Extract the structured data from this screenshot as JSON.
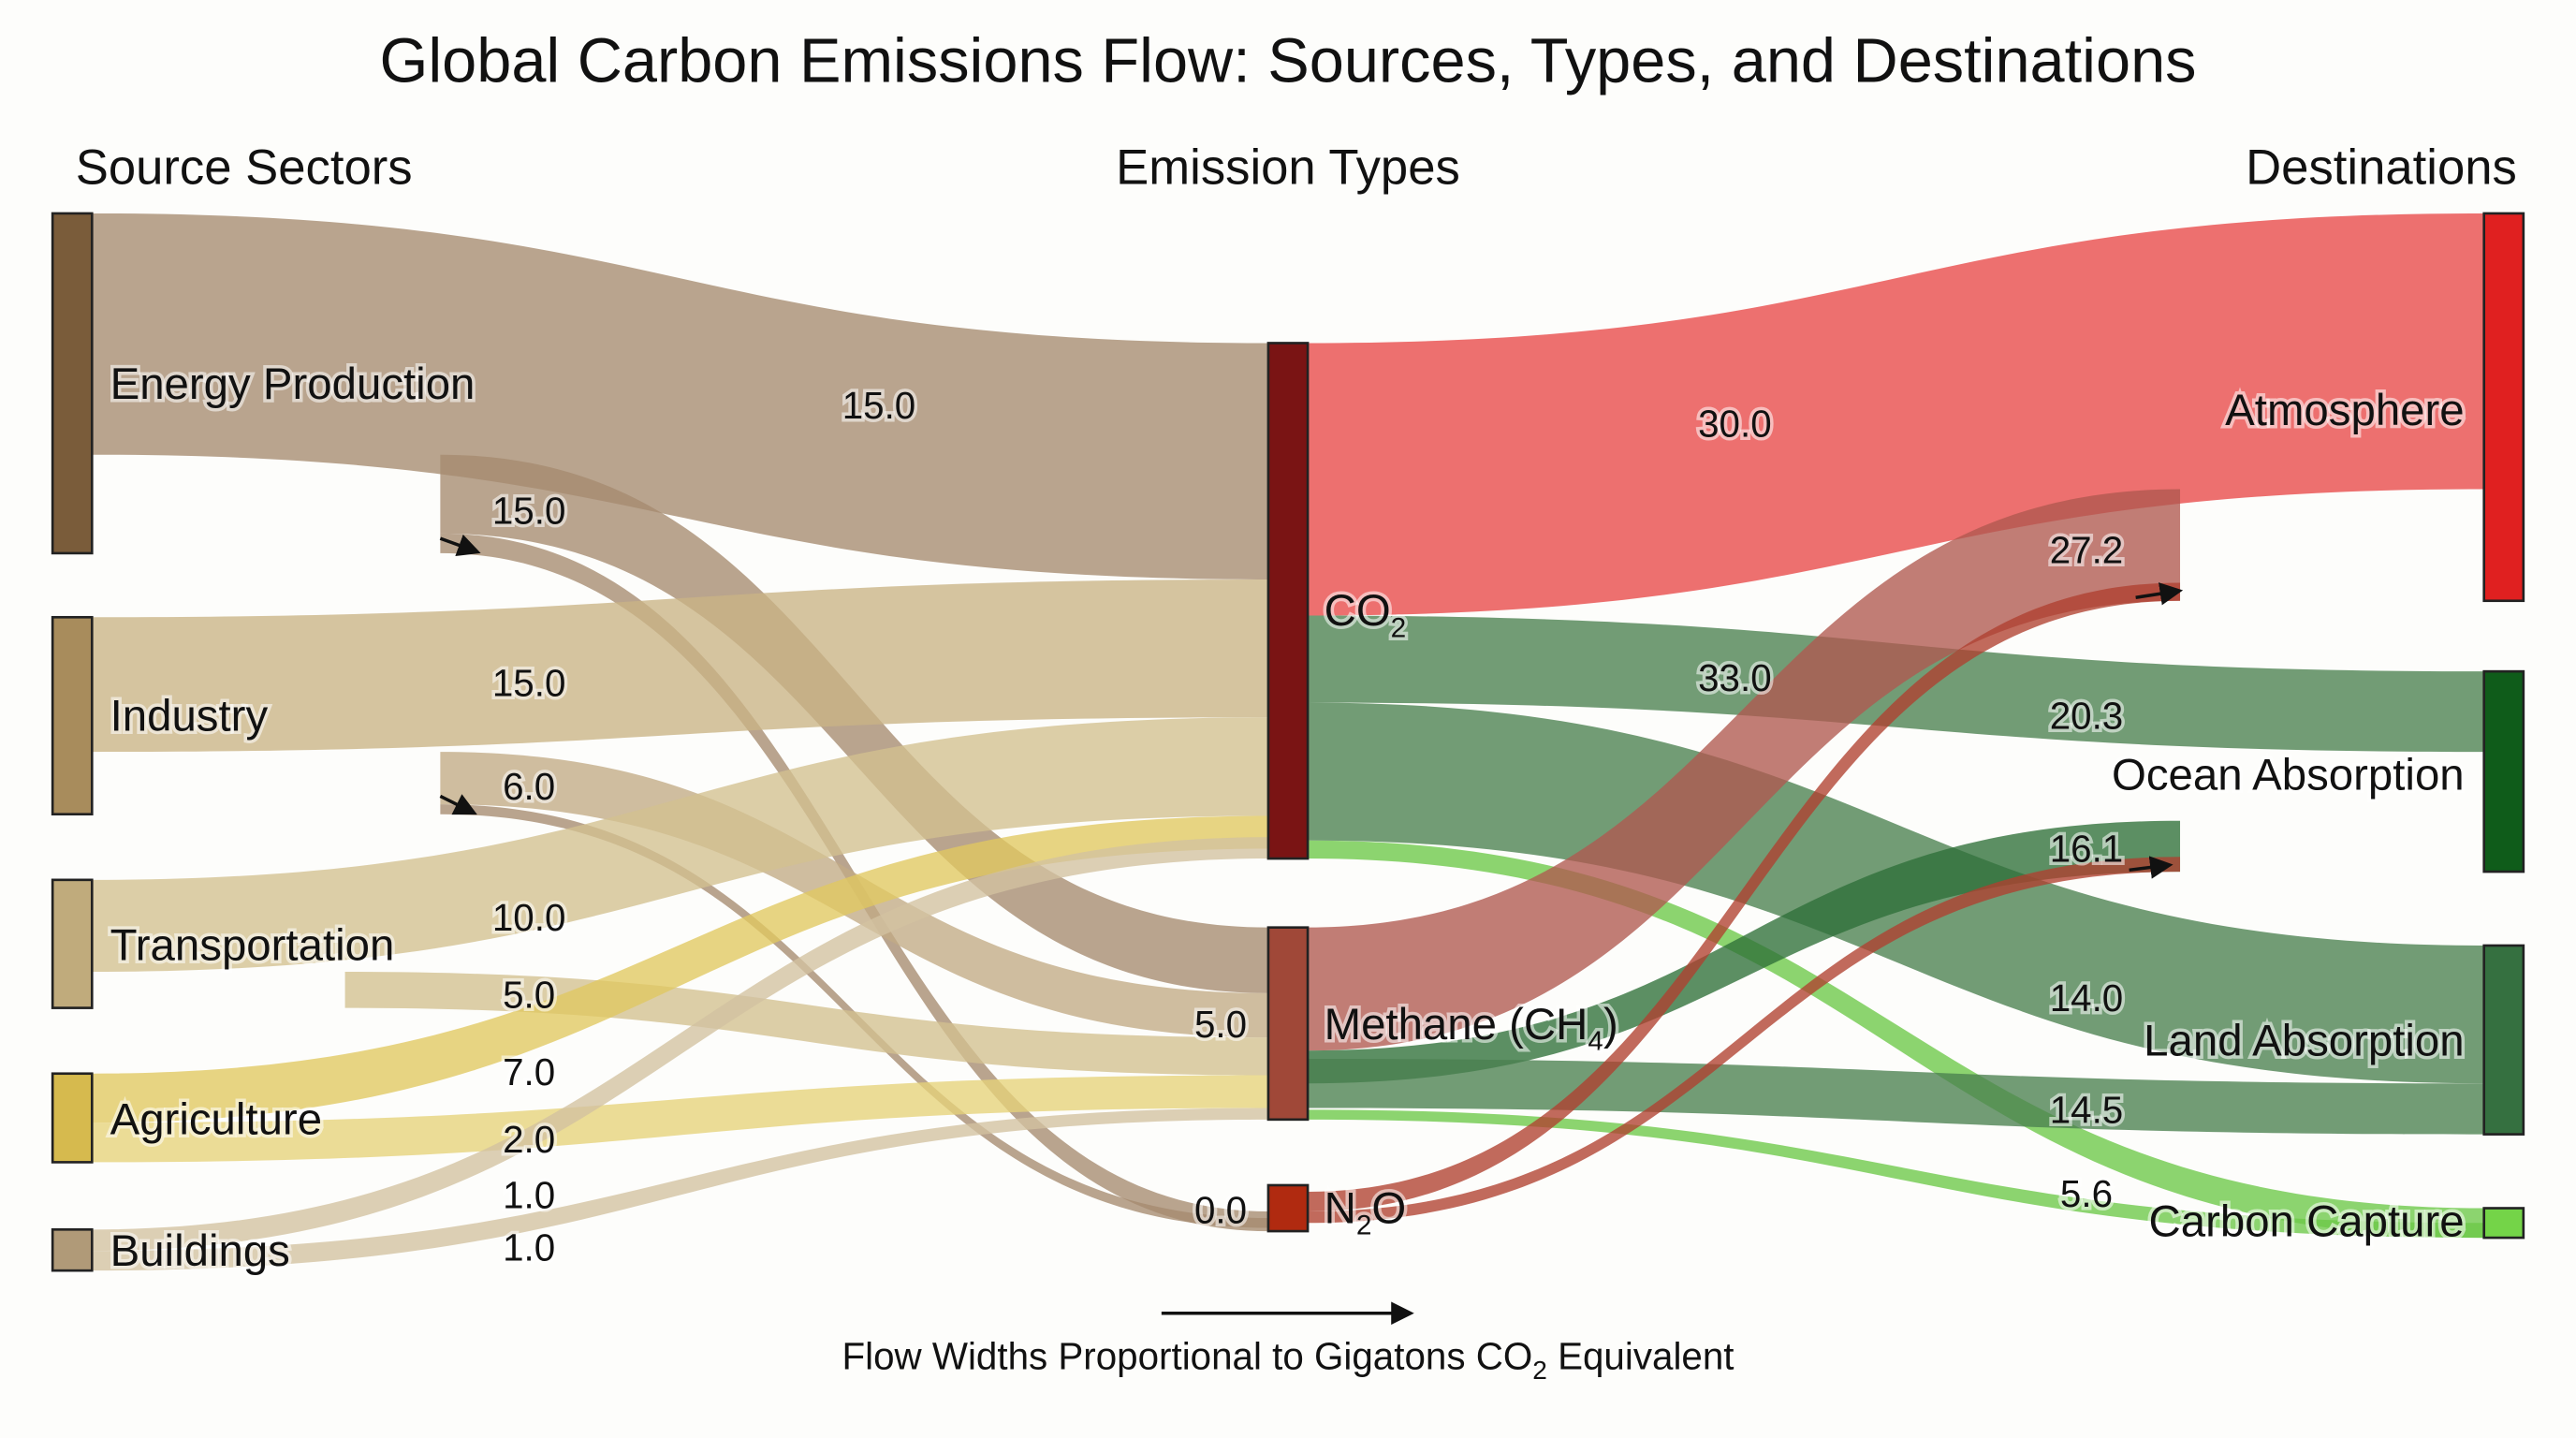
{
  "title": "Global Carbon Emissions Flow: Sources, Types, and Destinations",
  "columns": {
    "sources": "Source Sectors",
    "types": "Emission Types",
    "destinations": "Destinations"
  },
  "caption": {
    "text": "Flow Widths Proportional to Gigatons CO",
    "sub": "2",
    "suffix": " Equivalent"
  },
  "nodes": {
    "energy": {
      "label": "Energy Production",
      "color": "#7a5c3a"
    },
    "industry": {
      "label": "Industry",
      "color": "#a88c5c"
    },
    "transport": {
      "label": "Transportation",
      "color": "#c0ab7c"
    },
    "agriculture": {
      "label": "Agriculture",
      "color": "#d6ba4e"
    },
    "buildings": {
      "label": "Buildings",
      "color": "#b09a78"
    },
    "co2": {
      "label": "CO",
      "sub": "2",
      "suffix": "",
      "color": "#7a1414"
    },
    "methane": {
      "label": "Methane (CH",
      "sub": "4",
      "suffix": ")",
      "color": "#a04838"
    },
    "n2o": {
      "label": "N",
      "sub": "2",
      "suffix": "O",
      "color": "#b02a10"
    },
    "atmosphere": {
      "label": "Atmosphere",
      "color": "#e02020"
    },
    "ocean": {
      "label": "Ocean Absorption",
      "color": "#0f5c1a"
    },
    "land": {
      "label": "Land Absorption",
      "color": "#357040"
    },
    "capture": {
      "label": "Carbon Capture",
      "color": "#74d448"
    }
  },
  "links": [
    {
      "source": "energy",
      "target": "co2",
      "color": "#a58a70"
    },
    {
      "source": "energy",
      "target": "methane",
      "color": "#a58a70"
    },
    {
      "source": "energy",
      "target": "n2o",
      "color": "#a58a70"
    },
    {
      "source": "industry",
      "target": "co2",
      "color": "#c9b385"
    },
    {
      "source": "industry",
      "target": "methane",
      "color": "#c2ab85"
    },
    {
      "source": "industry",
      "target": "n2o",
      "color": "#a58a70"
    },
    {
      "source": "transport",
      "target": "co2",
      "color": "#d2c08f"
    },
    {
      "source": "transport",
      "target": "methane",
      "color": "#d2c08f"
    },
    {
      "source": "agriculture",
      "target": "co2",
      "color": "#e0c860"
    },
    {
      "source": "agriculture",
      "target": "methane",
      "color": "#e6d27a"
    },
    {
      "source": "buildings",
      "target": "co2",
      "color": "#d2c2a0"
    },
    {
      "source": "buildings",
      "target": "methane",
      "color": "#d2c2a0"
    },
    {
      "source": "co2",
      "target": "atmosphere",
      "color": "#e84848"
    },
    {
      "source": "co2",
      "target": "ocean",
      "color": "#4a8050"
    },
    {
      "source": "co2",
      "target": "land",
      "color": "#4a8050"
    },
    {
      "source": "co2",
      "target": "capture",
      "color": "#6cc848"
    },
    {
      "source": "methane",
      "target": "atmosphere",
      "color": "#b05850"
    },
    {
      "source": "methane",
      "target": "ocean",
      "color": "#2e7038"
    },
    {
      "source": "methane",
      "target": "land",
      "color": "#4a8050"
    },
    {
      "source": "methane",
      "target": "capture",
      "color": "#6cc848"
    },
    {
      "source": "n2o",
      "target": "atmosphere",
      "color": "#b04030"
    },
    {
      "source": "n2o",
      "target": "ocean",
      "color": "#b04030"
    }
  ],
  "flow_labels": [
    "15.0",
    "15.0",
    "15.0",
    "6.0",
    "10.0",
    "5.0",
    "7.0",
    "2.0",
    "1.0",
    "1.0",
    "5.0",
    "0.0",
    "30.0",
    "33.0",
    "27.2",
    "20.3",
    "16.1",
    "14.0",
    "14.5",
    "5.6"
  ]
}
